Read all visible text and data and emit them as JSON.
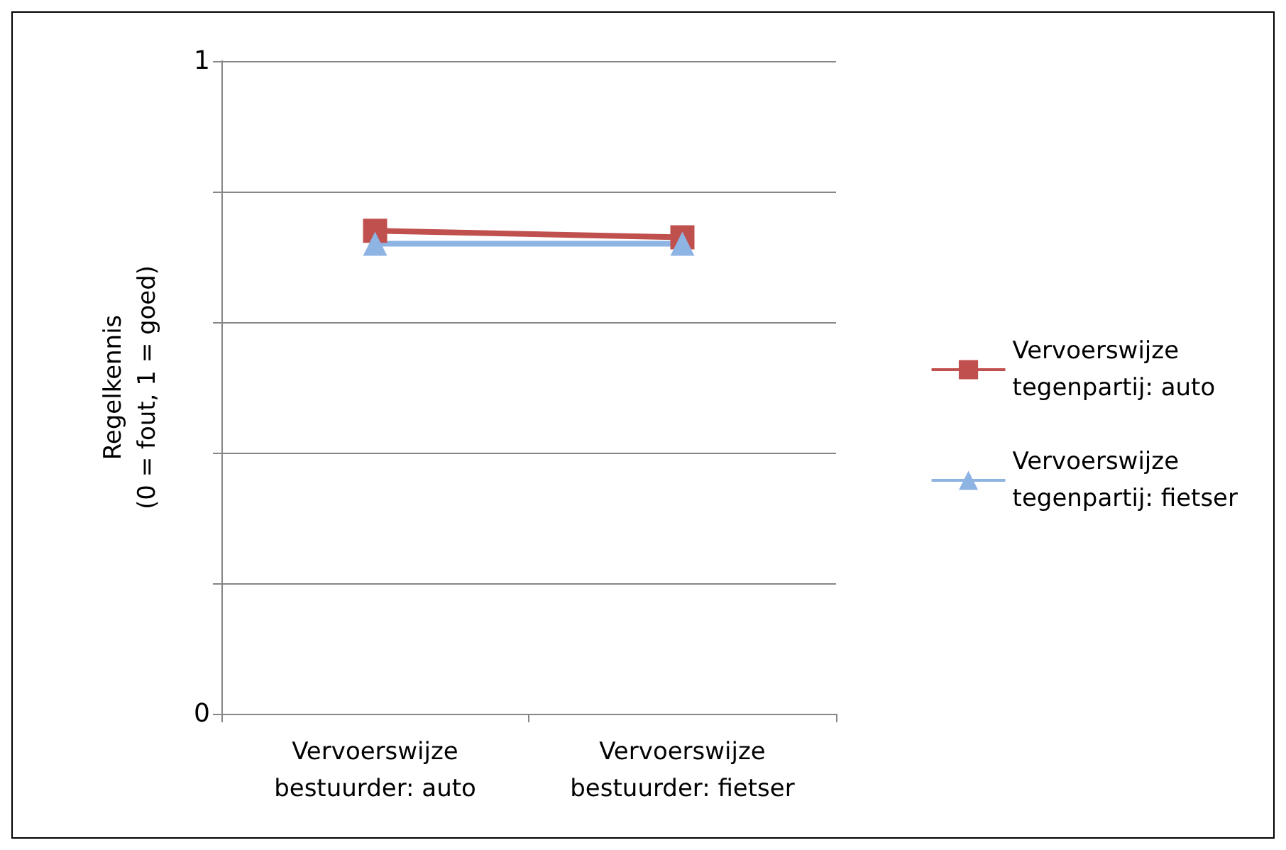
{
  "chart_data": {
    "type": "line",
    "ylabel": "Regelkennis\n(0 = fout, 1 = goed)",
    "categories": [
      "Vervoerswijze\nbestuurder: auto",
      "Vervoerswijze\nbestuurder: fietser"
    ],
    "series": [
      {
        "name": "Vervoerswijze\ntegenpartij: auto",
        "color": "#c0504d",
        "values": [
          0.74,
          0.73
        ],
        "marker": "square"
      },
      {
        "name": "Vervoerswijze\ntegenpartij: fietser",
        "color": "#8eb4e3",
        "values": [
          0.72,
          0.72
        ],
        "marker": "triangle"
      }
    ],
    "ylim": [
      0,
      1
    ],
    "yticks": [
      0,
      {
        "value": 0.2,
        "label": null
      },
      {
        "value": 0.4,
        "label": null
      },
      {
        "value": 0.6,
        "label": null
      },
      {
        "value": 0.8,
        "label": null
      },
      1
    ],
    "grid": "y",
    "legend": "right",
    "line_style": "solid"
  }
}
